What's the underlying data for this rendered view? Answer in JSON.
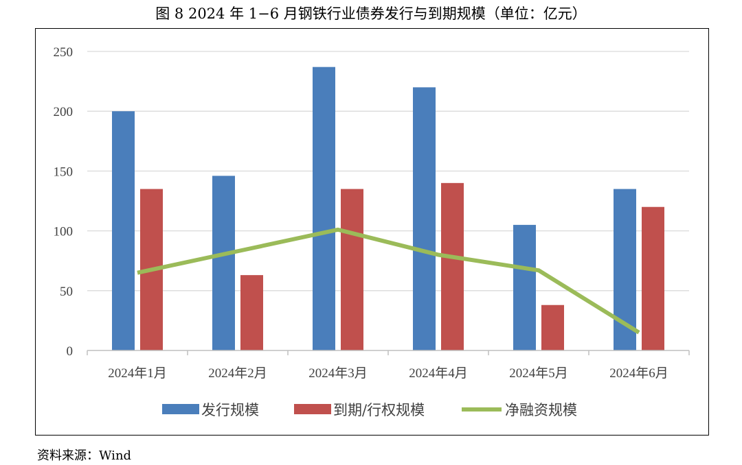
{
  "figure": {
    "title": "图 8   2024 年 1−6 月钢铁行业债券发行与到期规模（单位：亿元）",
    "source": "资料来源：Wind"
  },
  "chart_data": {
    "type": "bar",
    "categories": [
      "2024年1月",
      "2024年2月",
      "2024年3月",
      "2024年4月",
      "2024年5月",
      "2024年6月"
    ],
    "series": [
      {
        "name": "发行规模",
        "type": "bar",
        "color": "#4a7ebb",
        "values": [
          200,
          146,
          237,
          220,
          105,
          135
        ]
      },
      {
        "name": "到期/行权规模",
        "type": "bar",
        "color": "#c0504d",
        "values": [
          135,
          63,
          135,
          140,
          38,
          120
        ]
      },
      {
        "name": "净融资规模",
        "type": "line",
        "color": "#9bbb59",
        "values": [
          65,
          83,
          101,
          80,
          67,
          15
        ]
      }
    ],
    "ylim": [
      0,
      250
    ],
    "yticks": [
      0,
      50,
      100,
      150,
      200,
      250
    ],
    "grid": true,
    "legend_position": "bottom"
  }
}
